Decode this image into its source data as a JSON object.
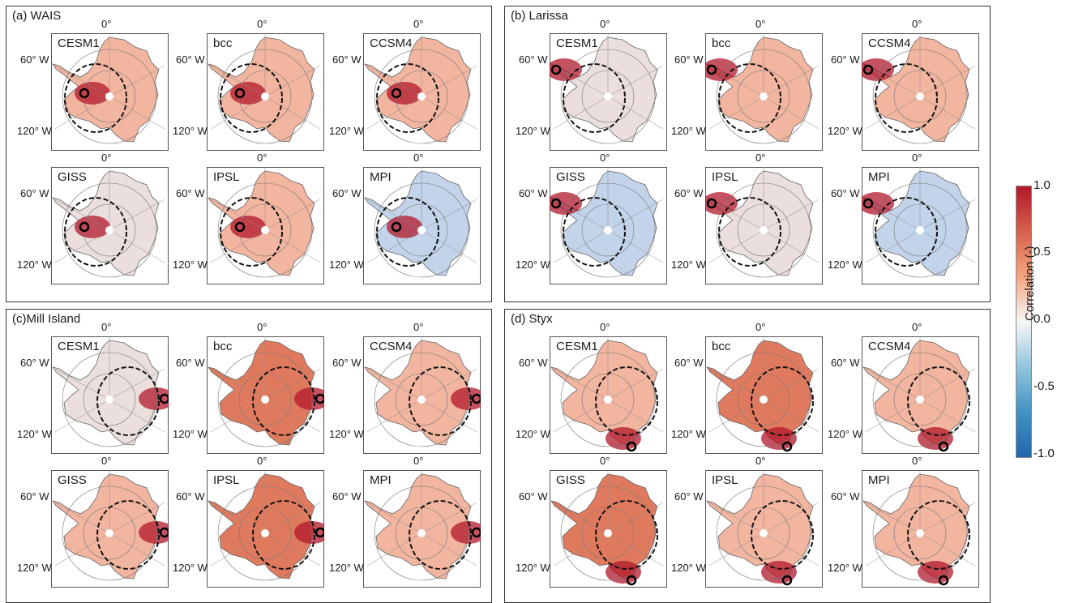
{
  "groups": [
    {
      "title": "(a) WAIS",
      "key": "wais",
      "site": "wais"
    },
    {
      "title": "(b) Larissa",
      "key": "larissa",
      "site": "larissa"
    },
    {
      "title": "(c)Mill Island",
      "key": "mill",
      "site": "mill"
    },
    {
      "title": "(d) Styx",
      "key": "styx",
      "site": "styx"
    }
  ],
  "models": [
    "CESM1",
    "bcc",
    "CCSM4",
    "GISS",
    "IPSL",
    "MPI"
  ],
  "axis_labels": {
    "top": "0°",
    "left_upper": "60° W",
    "left_lower": "120° W"
  },
  "colorbar": {
    "label": "Correlation (-)",
    "ticks": [
      "1.0",
      "0.5",
      "0.0",
      "-0.5",
      "-1.0"
    ],
    "colors": [
      "#b2182b",
      "#d6604d",
      "#f4a582",
      "#f7f7f7",
      "#92c5de",
      "#4393c3",
      "#2166ac"
    ]
  },
  "colors": {
    "strong_red": "#b2182b",
    "mid_red": "#e07a5f",
    "light_red": "#f2b5a0",
    "neutral": "#eadfdc",
    "light_blue": "#c3d4ea",
    "blue": "#9ab8e0"
  }
}
